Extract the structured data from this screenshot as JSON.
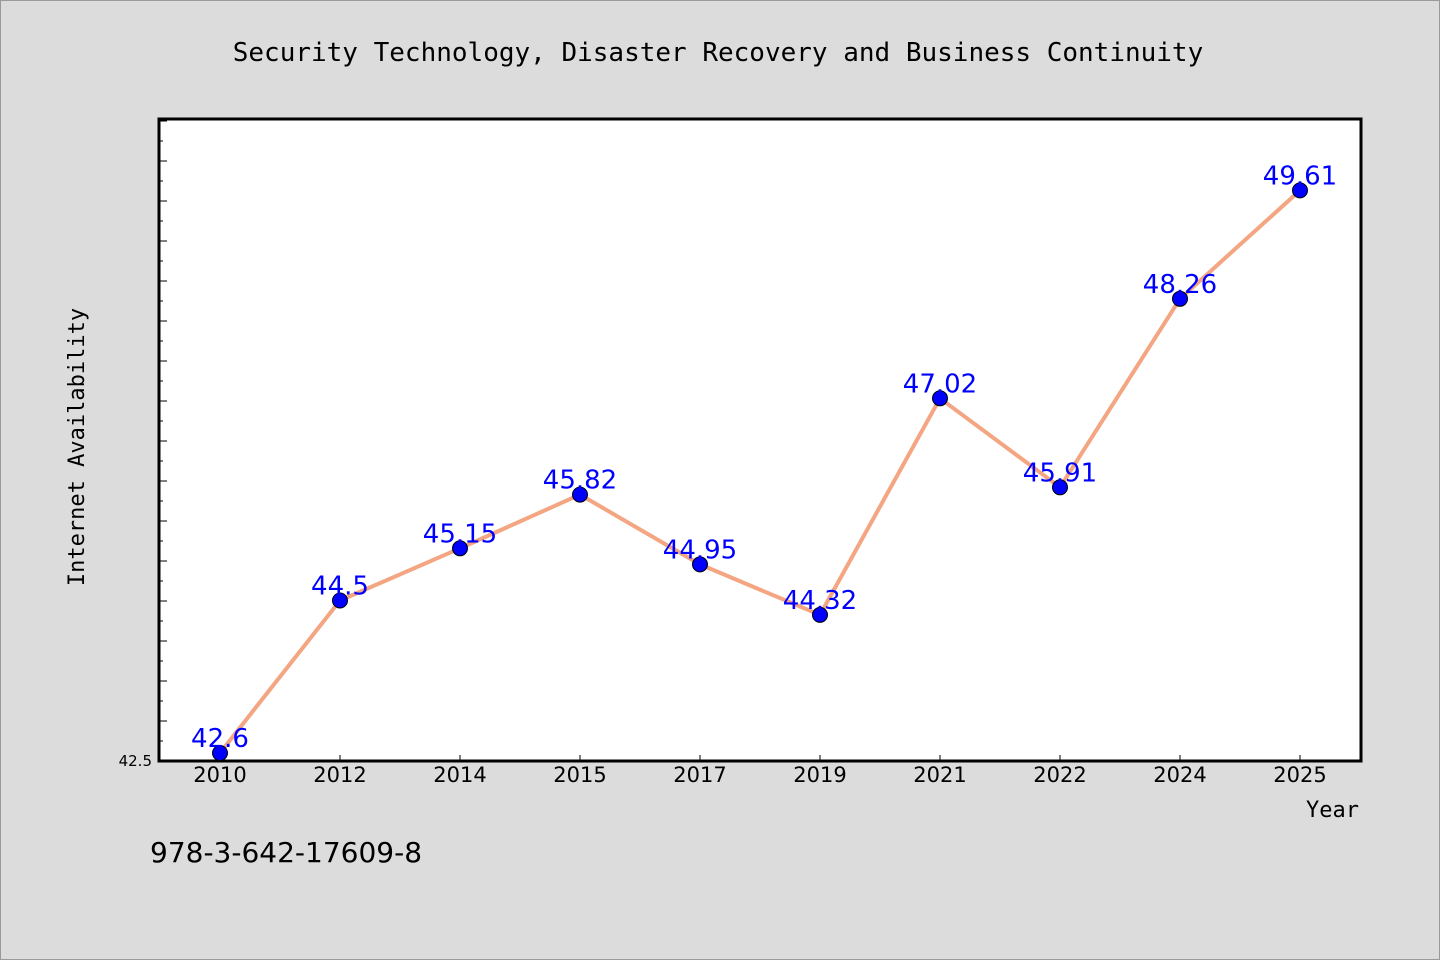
{
  "chart_data": {
    "type": "line",
    "title": "Security Technology, Disaster Recovery and Business Continuity",
    "xlabel": "Year",
    "ylabel": "Internet Availability",
    "categories": [
      "2010",
      "2012",
      "2014",
      "2015",
      "2017",
      "2019",
      "2021",
      "2022",
      "2024",
      "2025"
    ],
    "values": [
      42.6,
      44.5,
      45.15,
      45.82,
      44.95,
      44.32,
      47.02,
      45.91,
      48.26,
      49.61
    ],
    "data_labels": [
      "42.6",
      "44.5",
      "45.15",
      "45.82",
      "44.95",
      "44.32",
      "47.02",
      "45.91",
      "48.26",
      "49.61"
    ],
    "ylim": [
      42.5,
      50.5
    ],
    "ytick_label": "42.5",
    "grid": false,
    "legend": "none",
    "line_color": "#f4a582",
    "marker_color": "#0000ff",
    "label_color": "#0000ff"
  },
  "footer": {
    "text": "978-3-642-17609-8"
  }
}
